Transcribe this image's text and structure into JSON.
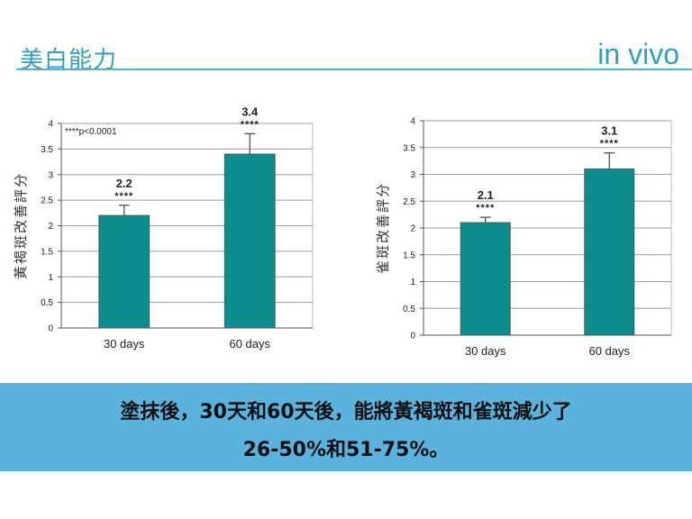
{
  "header": {
    "title": "美白能力",
    "tag": "in vivo"
  },
  "colors": {
    "accent": "#2f9fc8",
    "bar": "#0e8c8c",
    "banner": "#5bb2dc"
  },
  "chart_data": [
    {
      "type": "bar",
      "ylabel": "黃褐斑改善評分",
      "categories": [
        "30 days",
        "60 days"
      ],
      "values": [
        2.2,
        3.4
      ],
      "errors": [
        0.2,
        0.4
      ],
      "value_labels": [
        "2.2",
        "3.4"
      ],
      "significance": [
        "****",
        "****"
      ],
      "annotation": "****p<0.0001",
      "ylim": [
        0,
        4
      ],
      "yticks": [
        "0",
        "0.5",
        "1",
        "1.5",
        "2",
        "2.5",
        "3",
        "3.5",
        "4"
      ],
      "grid": true
    },
    {
      "type": "bar",
      "ylabel": "雀斑改善評分",
      "categories": [
        "30 days",
        "60 days"
      ],
      "values": [
        2.1,
        3.1
      ],
      "errors": [
        0.1,
        0.3
      ],
      "value_labels": [
        "2.1",
        "3.1"
      ],
      "significance": [
        "****",
        "****"
      ],
      "annotation": "",
      "ylim": [
        0,
        4
      ],
      "yticks": [
        "0",
        "0.5",
        "1",
        "1.5",
        "2",
        "2.5",
        "3",
        "3.5",
        "4"
      ],
      "grid": true
    }
  ],
  "banner": {
    "line1": "塗抹後，30天和60天後，能將黃褐斑和雀斑減少了",
    "line2": "26-50%和51-75%。"
  }
}
